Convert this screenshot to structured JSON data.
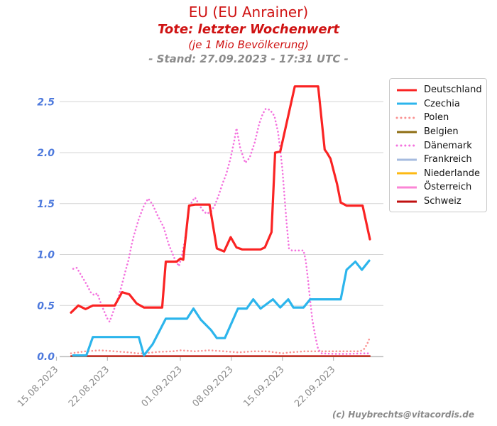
{
  "title": {
    "line1": "EU (EU Anrainer)",
    "line2": "Tote: letzter Wochenwert",
    "line3": "(je 1 Mio Bevölkerung)",
    "line4": "- Stand: 27.09.2023 - 17:31 UTC -"
  },
  "footer": "(c) Huybrechts@vitacordis.de",
  "colors": {
    "title_red": "#cf1212",
    "stand_gray": "#8c8c8c",
    "ytick_blue": "#4d79dd",
    "xtick_gray": "#8c8c8c",
    "grid": "#d4d4d4",
    "axis": "#b8b8b8"
  },
  "chart_data": {
    "type": "line",
    "title": "EU (EU Anrainer)",
    "subtitle": "Tote: letzter Wochenwert (je 1 Mio Bevölkerung)",
    "stand": "27.09.2023 - 17:31 UTC",
    "grid": true,
    "legend_position": "right",
    "y_axis": {
      "ticks": [
        0.0,
        0.5,
        1.0,
        1.5,
        2.0,
        2.5
      ],
      "tick_labels": [
        "0.0",
        "0.5",
        "1.0",
        "1.5",
        "2.0",
        "2.5"
      ],
      "range": [
        0.0,
        2.75
      ]
    },
    "x_axis": {
      "tick_labels": [
        "15.08.2023",
        "22.08.2023",
        "01.09.2023",
        "08.09.2023",
        "15.09.2023",
        "22.09.2023"
      ],
      "tick_days": [
        -2,
        5,
        15,
        22,
        29,
        36
      ],
      "data_day_range": [
        0,
        41
      ]
    },
    "series": [
      {
        "name": "Deutschland",
        "color": "#fa2323",
        "style": "solid",
        "width": 3.2,
        "points": [
          [
            0,
            0.43
          ],
          [
            1,
            0.5
          ],
          [
            2,
            0.465
          ],
          [
            3,
            0.5
          ],
          [
            6,
            0.5
          ],
          [
            7,
            0.63
          ],
          [
            8,
            0.61
          ],
          [
            9,
            0.52
          ],
          [
            10,
            0.48
          ],
          [
            12.5,
            0.48
          ],
          [
            13,
            0.93
          ],
          [
            14.5,
            0.93
          ],
          [
            15,
            0.96
          ],
          [
            15.4,
            0.95
          ],
          [
            16.2,
            1.48
          ],
          [
            17,
            1.49
          ],
          [
            19,
            1.49
          ],
          [
            20,
            1.06
          ],
          [
            21,
            1.03
          ],
          [
            21.9,
            1.17
          ],
          [
            22.7,
            1.07
          ],
          [
            23.5,
            1.05
          ],
          [
            26,
            1.05
          ],
          [
            26.6,
            1.07
          ],
          [
            27.5,
            1.22
          ],
          [
            28,
            2.0
          ],
          [
            28.7,
            2.01
          ],
          [
            30.7,
            2.65
          ],
          [
            33.9,
            2.65
          ],
          [
            34.8,
            2.03
          ],
          [
            35.1,
            2.0
          ],
          [
            35.6,
            1.94
          ],
          [
            36.5,
            1.69
          ],
          [
            37,
            1.51
          ],
          [
            37.8,
            1.48
          ],
          [
            40,
            1.48
          ],
          [
            41,
            1.15
          ]
        ]
      },
      {
        "name": "Czechia",
        "color": "#2cb5ec",
        "style": "solid",
        "width": 3.2,
        "points": [
          [
            0.3,
            0.01
          ],
          [
            2.1,
            0.01
          ],
          [
            3,
            0.19
          ],
          [
            9.3,
            0.19
          ],
          [
            10,
            0.01
          ],
          [
            11.2,
            0.12
          ],
          [
            13,
            0.37
          ],
          [
            15.9,
            0.37
          ],
          [
            16.8,
            0.47
          ],
          [
            17.8,
            0.36
          ],
          [
            19.2,
            0.26
          ],
          [
            20,
            0.18
          ],
          [
            21.1,
            0.18
          ],
          [
            22.1,
            0.34
          ],
          [
            22.9,
            0.47
          ],
          [
            24.1,
            0.47
          ],
          [
            25,
            0.56
          ],
          [
            26,
            0.47
          ],
          [
            27.7,
            0.56
          ],
          [
            28.7,
            0.48
          ],
          [
            29.8,
            0.56
          ],
          [
            30.5,
            0.48
          ],
          [
            31.9,
            0.48
          ],
          [
            32.8,
            0.56
          ],
          [
            37,
            0.56
          ],
          [
            37.8,
            0.85
          ],
          [
            39,
            0.93
          ],
          [
            39.9,
            0.85
          ],
          [
            40.9,
            0.94
          ]
        ]
      },
      {
        "name": "Polen",
        "color": "#fa9393",
        "style": "dotted",
        "width": 2.6,
        "points": [
          [
            0,
            0.03
          ],
          [
            2,
            0.05
          ],
          [
            4,
            0.06
          ],
          [
            6,
            0.05
          ],
          [
            8,
            0.04
          ],
          [
            9,
            0.03
          ],
          [
            10,
            0.03
          ],
          [
            12,
            0.045
          ],
          [
            14,
            0.05
          ],
          [
            15,
            0.06
          ],
          [
            17,
            0.05
          ],
          [
            19,
            0.06
          ],
          [
            21,
            0.05
          ],
          [
            23,
            0.04
          ],
          [
            25,
            0.05
          ],
          [
            27,
            0.05
          ],
          [
            28,
            0.04
          ],
          [
            29,
            0.03
          ],
          [
            30,
            0.04
          ],
          [
            32,
            0.05
          ],
          [
            34,
            0.05
          ],
          [
            36,
            0.05
          ],
          [
            38,
            0.05
          ],
          [
            39.5,
            0.05
          ],
          [
            40,
            0.06
          ],
          [
            40.3,
            0.08
          ],
          [
            40.6,
            0.12
          ],
          [
            40.8,
            0.15
          ],
          [
            41,
            0.19
          ]
        ]
      },
      {
        "name": "Belgien",
        "color": "#8e6d13",
        "style": "solid",
        "width": 1.5,
        "points": [
          [
            0,
            0.0
          ],
          [
            41,
            0.0
          ]
        ]
      },
      {
        "name": "Dänemark",
        "color": "#f472de",
        "style": "dotted",
        "width": 2.6,
        "points": [
          [
            0.3,
            0.86
          ],
          [
            0.8,
            0.87
          ],
          [
            1.2,
            0.82
          ],
          [
            1.7,
            0.76
          ],
          [
            2.2,
            0.7
          ],
          [
            2.7,
            0.63
          ],
          [
            3.2,
            0.6
          ],
          [
            3.6,
            0.62
          ],
          [
            4.1,
            0.52
          ],
          [
            4.5,
            0.45
          ],
          [
            5.0,
            0.37
          ],
          [
            5.3,
            0.34
          ],
          [
            5.7,
            0.42
          ],
          [
            6.1,
            0.5
          ],
          [
            6.5,
            0.58
          ],
          [
            7.0,
            0.71
          ],
          [
            7.4,
            0.82
          ],
          [
            7.9,
            0.95
          ],
          [
            8.3,
            1.09
          ],
          [
            8.6,
            1.18
          ],
          [
            9.3,
            1.35
          ],
          [
            10.0,
            1.48
          ],
          [
            10.6,
            1.55
          ],
          [
            11.2,
            1.49
          ],
          [
            11.9,
            1.38
          ],
          [
            12.7,
            1.27
          ],
          [
            13.4,
            1.1
          ],
          [
            14.2,
            0.96
          ],
          [
            14.8,
            0.885
          ],
          [
            15.2,
            0.99
          ],
          [
            15.6,
            1.13
          ],
          [
            15.9,
            1.29
          ],
          [
            16.2,
            1.45
          ],
          [
            16.6,
            1.52
          ],
          [
            17.0,
            1.56
          ],
          [
            17.5,
            1.5
          ],
          [
            18.0,
            1.44
          ],
          [
            18.6,
            1.4
          ],
          [
            19.2,
            1.42
          ],
          [
            19.7,
            1.48
          ],
          [
            20.2,
            1.57
          ],
          [
            20.8,
            1.7
          ],
          [
            21.3,
            1.79
          ],
          [
            21.9,
            1.95
          ],
          [
            22.4,
            2.12
          ],
          [
            22.7,
            2.24
          ],
          [
            23.2,
            2.05
          ],
          [
            23.9,
            1.9
          ],
          [
            24.5,
            1.95
          ],
          [
            25.2,
            2.1
          ],
          [
            25.8,
            2.28
          ],
          [
            26.3,
            2.38
          ],
          [
            26.7,
            2.43
          ],
          [
            27.3,
            2.42
          ],
          [
            27.9,
            2.36
          ],
          [
            28.4,
            2.2
          ],
          [
            28.7,
            2.03
          ],
          [
            29.0,
            1.83
          ],
          [
            29.3,
            1.55
          ],
          [
            29.6,
            1.29
          ],
          [
            29.9,
            1.06
          ],
          [
            30.3,
            1.04
          ],
          [
            31.9,
            1.04
          ],
          [
            32.2,
            0.94
          ],
          [
            32.5,
            0.76
          ],
          [
            32.8,
            0.55
          ],
          [
            33.1,
            0.36
          ],
          [
            33.5,
            0.2
          ],
          [
            33.9,
            0.07
          ],
          [
            34.4,
            0.03
          ],
          [
            36,
            0.025
          ],
          [
            38,
            0.025
          ],
          [
            40,
            0.03
          ],
          [
            41,
            0.03
          ]
        ]
      },
      {
        "name": "Frankreich",
        "color": "#a6bbdf",
        "style": "solid",
        "width": 1.5,
        "points": [
          [
            0,
            0.0
          ],
          [
            41,
            0.0
          ]
        ]
      },
      {
        "name": "Niederlande",
        "color": "#fdb913",
        "style": "solid",
        "width": 1.5,
        "points": [
          [
            0,
            0.0
          ],
          [
            41,
            0.0
          ]
        ]
      },
      {
        "name": "Österreich",
        "color": "#fb85d6",
        "style": "solid",
        "width": 1.5,
        "points": [
          [
            0,
            0.0
          ],
          [
            41,
            0.0
          ]
        ]
      },
      {
        "name": "Schweiz",
        "color": "#c01010",
        "style": "solid",
        "width": 2.0,
        "points": [
          [
            0,
            0.004
          ],
          [
            41,
            0.004
          ]
        ]
      }
    ],
    "draw_order": [
      "Polen",
      "Frankreich",
      "Niederlande",
      "Österreich",
      "Belgien",
      "Schweiz",
      "Dänemark",
      "Czechia",
      "Deutschland"
    ]
  },
  "legend": {
    "items": [
      "Deutschland",
      "Czechia",
      "Polen",
      "Belgien",
      "Dänemark",
      "Frankreich",
      "Niederlande",
      "Österreich",
      "Schweiz"
    ]
  }
}
